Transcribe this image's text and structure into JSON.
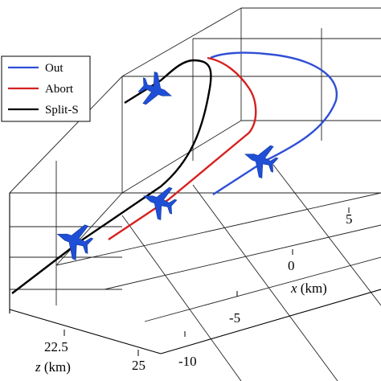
{
  "chart_data": {
    "type": "line",
    "projection": "3d",
    "title": "",
    "xlabel": "x (km)",
    "xlabel_var": "x",
    "xlabel_unit": " (km)",
    "zlabel": "z (km)",
    "zlabel_var": "z",
    "zlabel_unit": " (km)",
    "x_ticks": [
      "5",
      "0",
      "-5",
      "-10"
    ],
    "z_ticks": [
      "22.5",
      "25"
    ],
    "grid": true,
    "legend_position": "top-left",
    "series": [
      {
        "name": "Out",
        "color": "#2f4fd6"
      },
      {
        "name": "Abort",
        "color": "#d62020"
      },
      {
        "name": "Split-S",
        "color": "#000000"
      }
    ],
    "aircraft_icon": "fighter-jet-icon",
    "aircraft_color": "#1f4fd6"
  }
}
